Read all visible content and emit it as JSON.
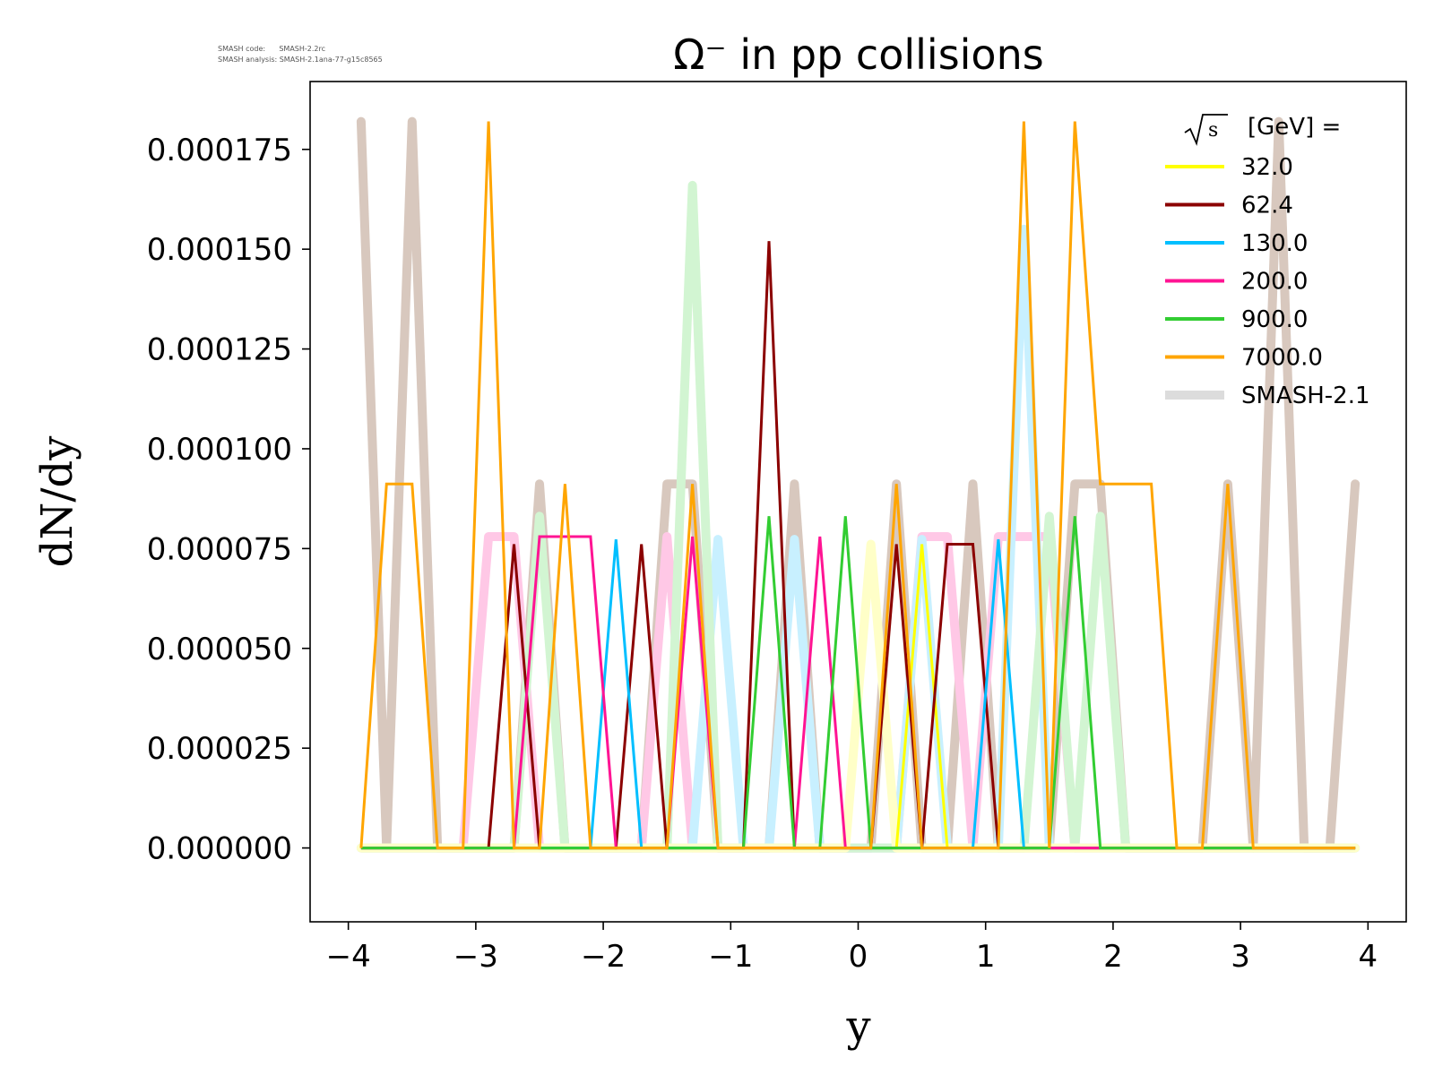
{
  "meta": {
    "code_line": "SMASH code:      SMASH-2.2rc",
    "analysis_line": "SMASH analysis: SMASH-2.1ana-77-g15c8565"
  },
  "chart_data": {
    "type": "line",
    "title": "Ω⁻ in pp collisions",
    "xlabel": "y",
    "ylabel": "dN/dy",
    "xlim": [
      -4.3,
      4.3
    ],
    "ylim": [
      -1.85e-05,
      0.000192
    ],
    "xticks": [
      "−4",
      "−3",
      "−2",
      "−1",
      "0",
      "1",
      "2",
      "3",
      "4"
    ],
    "yticks": [
      "0.000000",
      "0.000025",
      "0.000050",
      "0.000075",
      "0.000100",
      "0.000125",
      "0.000150",
      "0.000175"
    ],
    "grid": false,
    "legend": {
      "position": "top-right",
      "title": "√s  [GeV] =",
      "sqrt_symbol": "√",
      "sqrt_arg": "s",
      "title_rest": "[GeV] ="
    },
    "x": [
      -3.9,
      -3.7,
      -3.5,
      -3.3,
      -3.1,
      -2.9,
      -2.7,
      -2.5,
      -2.3,
      -2.1,
      -1.9,
      -1.7,
      -1.5,
      -1.3,
      -1.1,
      -0.9,
      -0.7,
      -0.5,
      -0.3,
      -0.1,
      0.1,
      0.3,
      0.5,
      0.7,
      0.9,
      1.1,
      1.3,
      1.5,
      1.7,
      1.9,
      2.1,
      2.3,
      2.5,
      2.7,
      2.9,
      3.1,
      3.3,
      3.5,
      3.7,
      3.9
    ],
    "series": [
      {
        "name": "32.0",
        "color": "#ffff00",
        "values": [
          0,
          0,
          0,
          0,
          0,
          0,
          0,
          0,
          0,
          0,
          0,
          0,
          0,
          0,
          0,
          0,
          0,
          0,
          0,
          0,
          0,
          0,
          7.61e-05,
          0,
          0,
          0,
          0,
          0,
          0,
          0,
          0,
          0,
          0,
          0,
          0,
          0,
          0,
          0,
          0,
          0
        ]
      },
      {
        "name": "62.4",
        "color": "#8b0000",
        "values": [
          0,
          0,
          0,
          0,
          0,
          0,
          7.61e-05,
          0,
          0,
          0,
          0,
          7.61e-05,
          0,
          0,
          0,
          0,
          0.000152,
          0,
          0,
          0,
          0,
          7.61e-05,
          0,
          7.61e-05,
          7.61e-05,
          0,
          0,
          0,
          0,
          0,
          0,
          0,
          0,
          0,
          0,
          0,
          0,
          0,
          0,
          0
        ]
      },
      {
        "name": "130.0",
        "color": "#00bfff",
        "values": [
          0,
          0,
          0,
          0,
          0,
          0,
          0,
          0,
          0,
          0,
          7.73e-05,
          0,
          0,
          0,
          0,
          0,
          0,
          0,
          0,
          0,
          0,
          0,
          0,
          0,
          0,
          7.73e-05,
          0,
          0,
          0,
          0,
          0,
          0,
          0,
          0,
          0,
          0,
          0,
          0,
          0,
          0
        ]
      },
      {
        "name": "200.0",
        "color": "#ff1493",
        "values": [
          0,
          0,
          0,
          0,
          0,
          0,
          0,
          7.8e-05,
          7.8e-05,
          7.8e-05,
          0,
          0,
          0,
          7.8e-05,
          0,
          0,
          0,
          0,
          7.8e-05,
          0,
          0,
          0,
          0,
          0,
          0,
          0,
          0,
          0,
          0,
          0,
          0,
          0,
          0,
          0,
          0,
          0,
          0,
          0,
          0,
          0
        ]
      },
      {
        "name": "900.0",
        "color": "#32cd32",
        "values": [
          0,
          0,
          0,
          0,
          0,
          0,
          0,
          0,
          0,
          0,
          0,
          0,
          0,
          0,
          0,
          0,
          8.31e-05,
          0,
          0,
          8.31e-05,
          0,
          0,
          0,
          0,
          0,
          0,
          0,
          0,
          8.31e-05,
          0,
          0,
          0,
          0,
          0,
          0,
          0,
          0,
          0,
          0,
          0
        ]
      },
      {
        "name": "7000.0",
        "color": "#ffa500",
        "values": [
          0,
          9.12e-05,
          9.12e-05,
          0,
          0,
          0.000182,
          0,
          0,
          9.12e-05,
          0,
          0,
          0,
          0,
          9.12e-05,
          0,
          0,
          0,
          0,
          0,
          0,
          0,
          9.12e-05,
          0,
          0,
          0,
          0,
          0.000182,
          0,
          0.000182,
          9.12e-05,
          9.12e-05,
          9.12e-05,
          0,
          0,
          9.12e-05,
          0,
          0,
          0,
          0,
          0
        ]
      }
    ],
    "reference_label": "SMASH-2.1",
    "reference_legend_color": "#dcdcdc",
    "reference_series": [
      {
        "color": "#d8c8be",
        "values": [
          0.000182,
          0,
          0.000182,
          0,
          0,
          0,
          0,
          9.12e-05,
          0,
          0,
          0,
          0,
          9.12e-05,
          9.12e-05,
          0,
          0,
          0,
          9.12e-05,
          0,
          0,
          0,
          9.12e-05,
          0,
          0,
          9.12e-05,
          0,
          0,
          0,
          9.12e-05,
          9.12e-05,
          0,
          0,
          0,
          0,
          9.12e-05,
          0,
          0.000182,
          0,
          0,
          9.12e-05
        ]
      },
      {
        "color": "#ffc8e6",
        "values": [
          0,
          0,
          0,
          0,
          0,
          7.8e-05,
          7.8e-05,
          0,
          0,
          0,
          0,
          0,
          7.8e-05,
          0,
          0,
          0,
          0,
          0,
          0,
          0,
          0,
          0,
          7.8e-05,
          7.8e-05,
          0,
          7.8e-05,
          7.8e-05,
          7.8e-05,
          0,
          0,
          0,
          0,
          0,
          0,
          0,
          0,
          0,
          0,
          0,
          0
        ]
      },
      {
        "color": "#c8f0ff",
        "values": [
          0,
          0,
          0,
          0,
          0,
          0,
          0,
          0,
          0,
          0,
          0,
          0,
          0,
          0,
          7.73e-05,
          0,
          0,
          7.73e-05,
          0,
          0,
          0,
          0,
          7.73e-05,
          0,
          0,
          0,
          0.000155,
          0,
          0,
          0,
          0,
          0,
          0,
          0,
          0,
          0,
          0,
          0,
          0,
          0
        ]
      },
      {
        "color": "#d2f5d2",
        "values": [
          0,
          0,
          0,
          0,
          0,
          0,
          0,
          8.31e-05,
          0,
          0,
          0,
          0,
          0,
          0.000166,
          0,
          0,
          0,
          0,
          0,
          0,
          0,
          0,
          0,
          0,
          0,
          0,
          0,
          8.31e-05,
          0,
          8.31e-05,
          0,
          0,
          0,
          0,
          0,
          0,
          0,
          0,
          0,
          0
        ]
      },
      {
        "color": "#ffffc8",
        "values": [
          0,
          0,
          0,
          0,
          0,
          0,
          0,
          0,
          0,
          0,
          0,
          0,
          0,
          0,
          0,
          0,
          0,
          0,
          0,
          0,
          7.61e-05,
          0,
          0,
          0,
          0,
          0,
          0,
          0,
          0,
          0,
          0,
          0,
          0,
          0,
          0,
          0,
          0,
          0,
          0,
          0
        ]
      }
    ]
  }
}
